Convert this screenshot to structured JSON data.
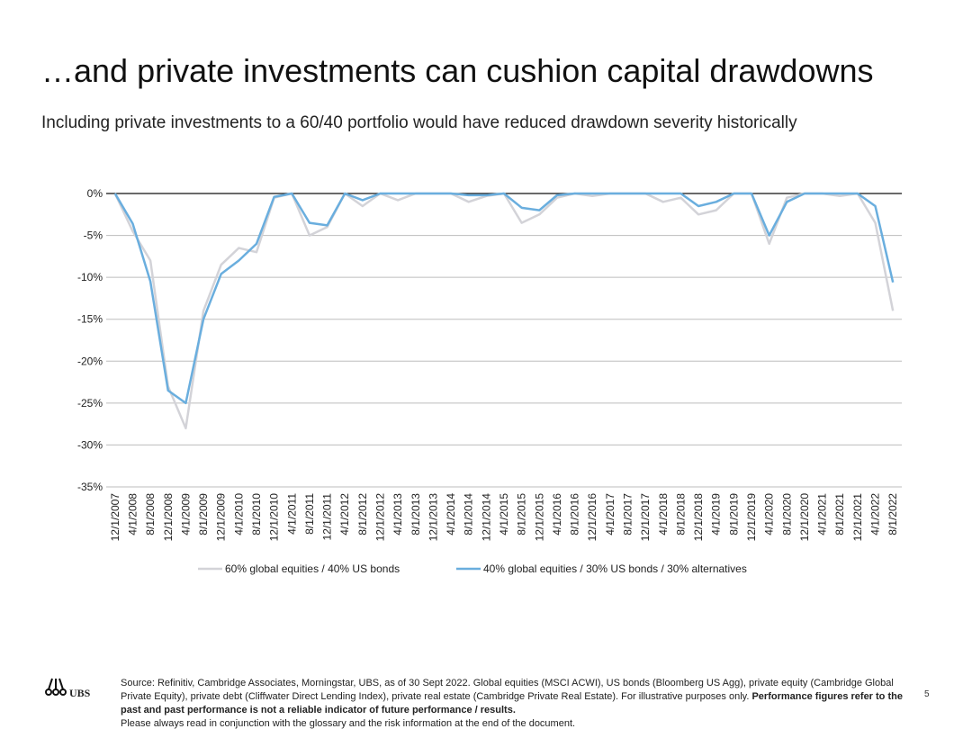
{
  "chart_data": {
    "type": "line",
    "title": "…and private investments can cushion capital drawdowns",
    "subtitle": "Including private investments to a 60/40 portfolio would have reduced drawdown severity historically",
    "categories": [
      "12/1/2007",
      "4/1/2008",
      "8/1/2008",
      "12/1/2008",
      "4/1/2009",
      "8/1/2009",
      "12/1/2009",
      "4/1/2010",
      "8/1/2010",
      "12/1/2010",
      "4/1/2011",
      "8/1/2011",
      "12/1/2011",
      "4/1/2012",
      "8/1/2012",
      "12/1/2012",
      "4/1/2013",
      "8/1/2013",
      "12/1/2013",
      "4/1/2014",
      "8/1/2014",
      "12/1/2014",
      "4/1/2015",
      "8/1/2015",
      "12/1/2015",
      "4/1/2016",
      "8/1/2016",
      "12/1/2016",
      "4/1/2017",
      "8/1/2017",
      "12/1/2017",
      "4/1/2018",
      "8/1/2018",
      "12/1/2018",
      "4/1/2019",
      "8/1/2019",
      "12/1/2019",
      "4/1/2020",
      "8/1/2020",
      "12/1/2020",
      "4/1/2021",
      "8/1/2021",
      "12/1/2021",
      "4/1/2022",
      "8/1/2022"
    ],
    "series": [
      {
        "name": "60% global equities / 40% US bonds",
        "color": "#d3d3d8",
        "values": [
          0,
          -4.5,
          -8,
          -23,
          -28,
          -14,
          -8.5,
          -6.5,
          -7,
          -0.5,
          0,
          -5,
          -4,
          0,
          -1.5,
          0,
          -0.8,
          0,
          0,
          0,
          -1,
          -0.3,
          0,
          -3.5,
          -2.5,
          -0.5,
          0,
          -0.3,
          0,
          0,
          0,
          -1,
          -0.5,
          -2.5,
          -2,
          0,
          0,
          -6,
          -0.5,
          0,
          0,
          -0.3,
          0,
          -3.5,
          -14
        ]
      },
      {
        "name": "40% global equities / 30% US bonds / 30% alternatives",
        "color": "#6aaede",
        "values": [
          0,
          -3.6,
          -10.5,
          -23.5,
          -25,
          -15,
          -9.6,
          -8,
          -6,
          -0.4,
          0,
          -3.5,
          -3.8,
          0,
          -0.8,
          0,
          0,
          0,
          0,
          0,
          -0.2,
          -0.2,
          0,
          -1.7,
          -2,
          -0.2,
          0,
          0,
          0,
          0,
          0,
          0,
          0,
          -1.5,
          -1,
          0,
          0,
          -5,
          -1,
          0,
          0,
          0,
          0,
          -1.5,
          -10.6
        ]
      }
    ],
    "ylim": [
      -35,
      0
    ],
    "yticks": [
      {
        "value": 0,
        "label": "0%"
      },
      {
        "value": -5,
        "label": "-5%"
      },
      {
        "value": -10,
        "label": "-10%"
      },
      {
        "value": -15,
        "label": "-15%"
      },
      {
        "value": -20,
        "label": "-20%"
      },
      {
        "value": -25,
        "label": "-25%"
      },
      {
        "value": -30,
        "label": "-30%"
      },
      {
        "value": -35,
        "label": "-35%"
      }
    ],
    "grid": true,
    "logo": "UBS",
    "note": "Source: Refinitiv, Cambridge Associates, Morningstar, UBS, as of 30 Sept 2022. Global equities (MSCI ACWI), US bonds (Bloomberg US Agg), private equity (Cambridge Global Private Equity), private debt (Cliffwater Direct Lending Index), private real estate (Cambridge Private Real Estate). For illustrative purposes only.",
    "note_bold": "Performance figures refer to the past and past performance is not a reliable indicator of future performance / results.",
    "note2": "Please always read in conjunction with the glossary and the risk information at the end of the document.",
    "page_number": "5"
  }
}
